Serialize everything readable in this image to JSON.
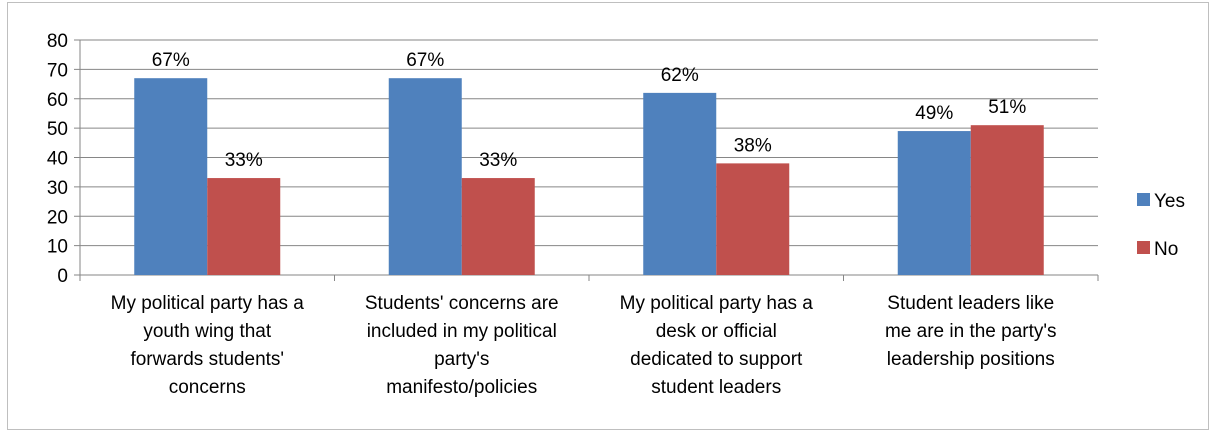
{
  "chart_data": {
    "type": "bar",
    "categories": [
      [
        "My political party has a",
        "youth wing that",
        "forwards students'",
        "concerns"
      ],
      [
        "Students' concerns are",
        "included in my political",
        "party's",
        "manifesto/policies"
      ],
      [
        "My political party has a",
        "desk or official",
        "dedicated to support",
        "student leaders"
      ],
      [
        "Student leaders like",
        "me are in the party's",
        "leadership positions"
      ]
    ],
    "series": [
      {
        "name": "Yes",
        "color": "#4f81bd",
        "values": [
          67,
          67,
          62,
          49
        ],
        "labels": [
          "67%",
          "67%",
          "62%",
          "49%"
        ]
      },
      {
        "name": "No",
        "color": "#c0504d",
        "values": [
          33,
          33,
          38,
          51
        ],
        "labels": [
          "33%",
          "33%",
          "38%",
          "51%"
        ]
      }
    ],
    "ylim": [
      0,
      80
    ],
    "yticks": [
      "0",
      "10",
      "20",
      "30",
      "40",
      "50",
      "60",
      "70",
      "80"
    ],
    "grid": true,
    "legend_position": "right"
  }
}
